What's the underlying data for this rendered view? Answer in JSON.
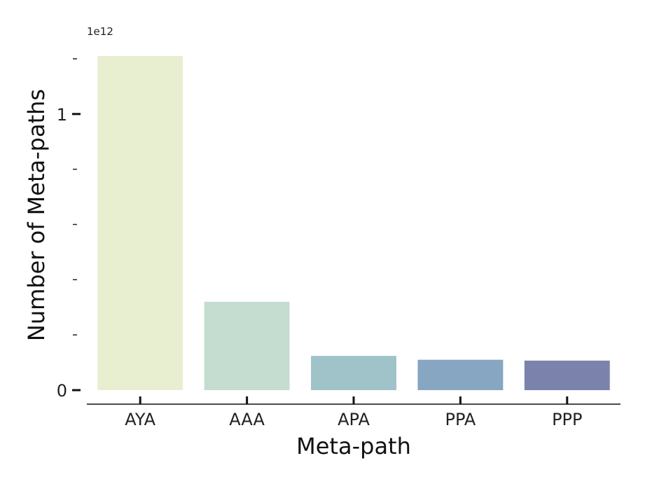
{
  "chart_data": {
    "type": "bar",
    "title": "",
    "xlabel": "Meta-path",
    "ylabel": "Number of Meta-paths",
    "y_offset_text": "1e12",
    "categories": [
      "AYA",
      "AAA",
      "APA",
      "PPA",
      "PPP"
    ],
    "values": [
      1210000000000.0,
      320000000000.0,
      124000000000.0,
      110000000000.0,
      107000000000.0
    ],
    "colors": [
      "#e8efd0",
      "#c5ddd0",
      "#9fc3c8",
      "#86a6c1",
      "#7b83ad"
    ],
    "ylim": [
      0,
      1210000000000.0
    ],
    "y_major_ticks": [
      {
        "value": 0,
        "label": "0"
      },
      {
        "value": 1000000000000.0,
        "label": "1"
      }
    ],
    "y_minor_ticks": [
      200000000000.0,
      400000000000.0,
      600000000000.0,
      800000000000.0,
      1200000000000.0
    ],
    "grid": false,
    "legend": "none"
  }
}
